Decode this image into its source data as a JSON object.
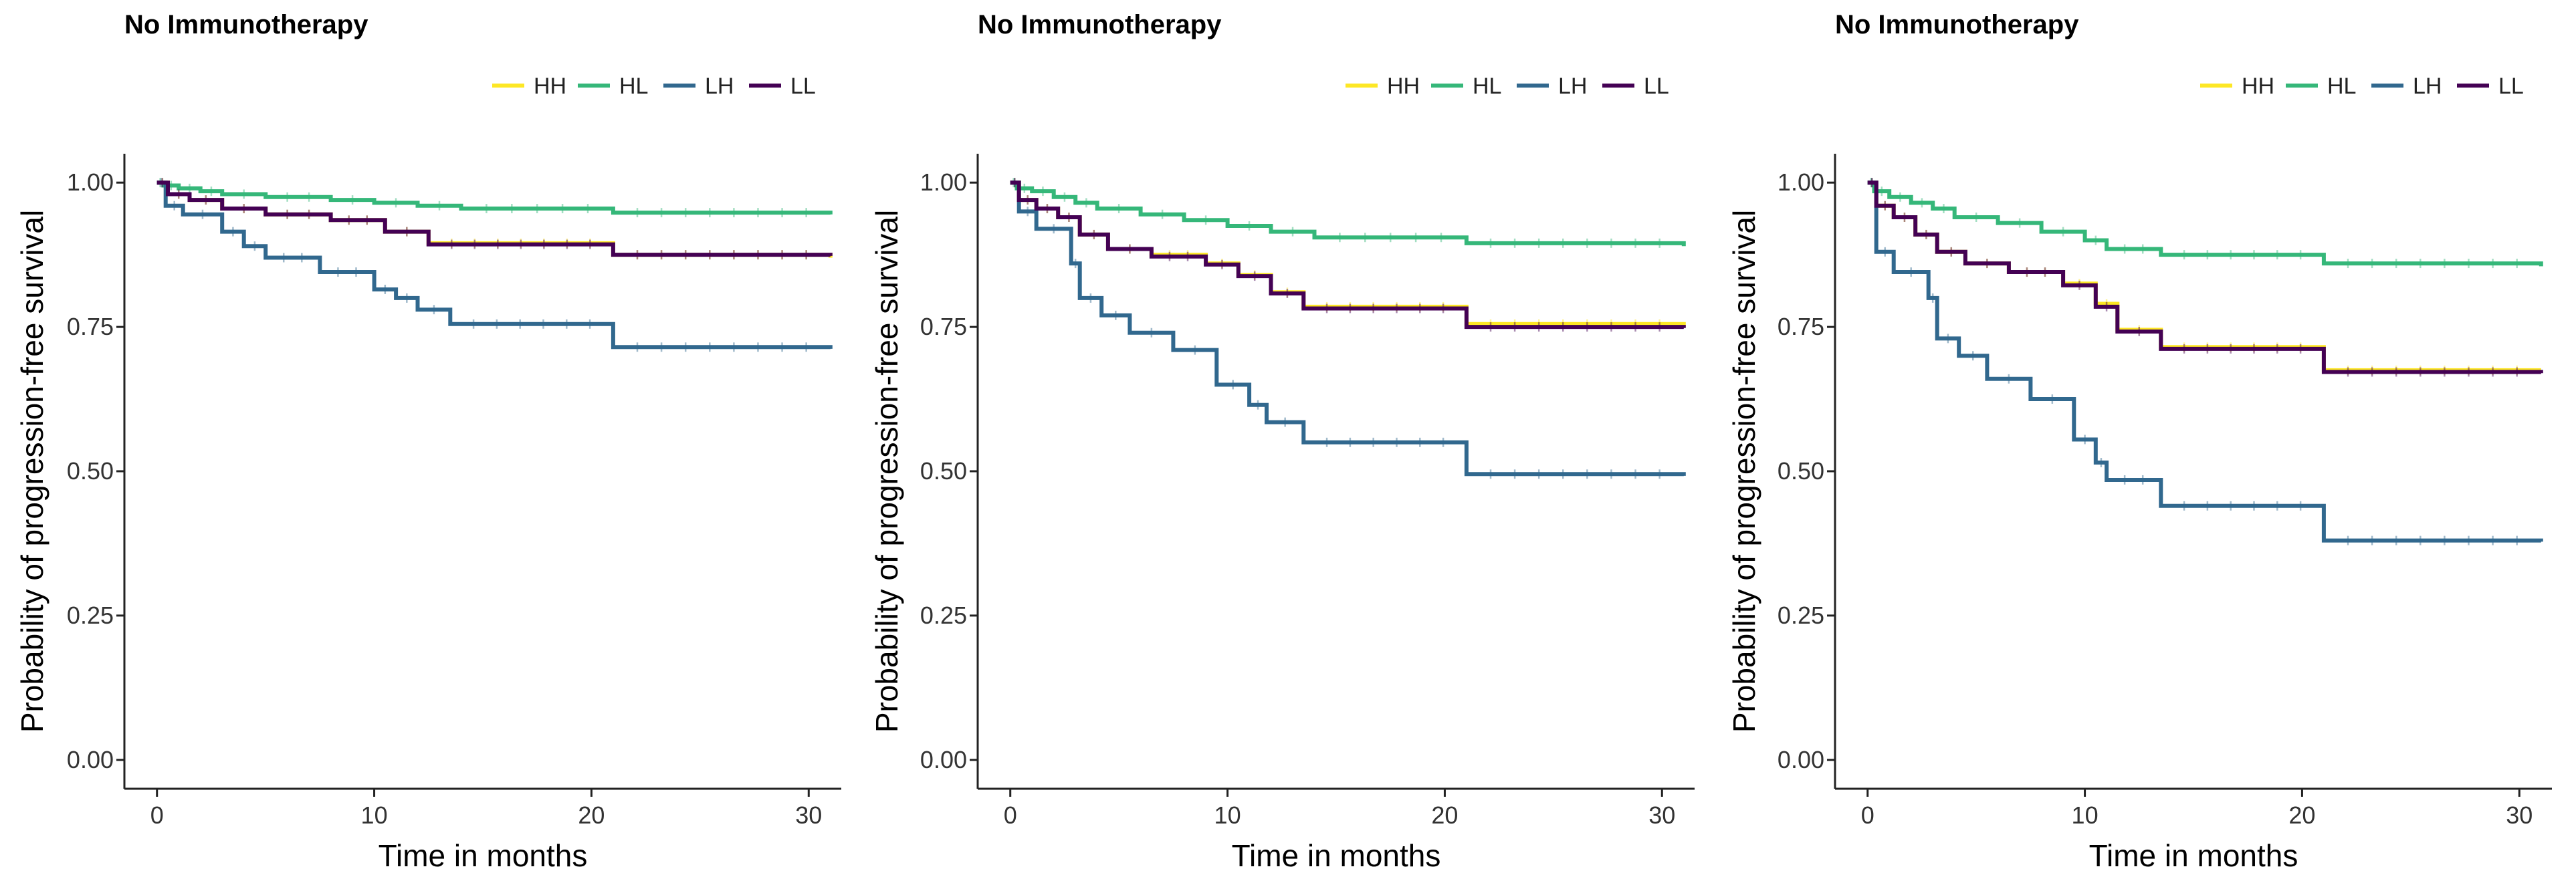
{
  "colors": {
    "HH": "#FDE725",
    "HL": "#35B779",
    "LH": "#31688E",
    "LL": "#440154"
  },
  "chart_data": [
    {
      "type": "line",
      "title": "No Immunotherapy",
      "xlabel": "Time in months",
      "ylabel": "Probability of progression-free survival",
      "xlim": [
        -1.5,
        31.5
      ],
      "ylim": [
        -0.05,
        1.05
      ],
      "xticks": [
        0,
        10,
        20,
        30
      ],
      "yticks": [
        0.0,
        0.25,
        0.5,
        0.75,
        1.0
      ],
      "ytick_labels": [
        "0.00",
        "0.25",
        "0.50",
        "0.75",
        "1.00"
      ],
      "xtick_labels": [
        "0",
        "10",
        "20",
        "30"
      ],
      "grid": false,
      "legend": "top-right",
      "series": [
        {
          "name": "HH",
          "x": [
            0,
            0.5,
            1.5,
            3,
            5,
            8,
            10.5,
            12.5,
            21,
            31
          ],
          "y": [
            1.0,
            0.98,
            0.97,
            0.955,
            0.945,
            0.935,
            0.915,
            0.895,
            0.875,
            0.87
          ]
        },
        {
          "name": "HL",
          "x": [
            0,
            0.3,
            1,
            2,
            3,
            5,
            8,
            10,
            12,
            14,
            21,
            31
          ],
          "y": [
            1.0,
            0.995,
            0.99,
            0.985,
            0.98,
            0.975,
            0.97,
            0.965,
            0.96,
            0.955,
            0.948,
            0.945
          ]
        },
        {
          "name": "LH",
          "x": [
            0,
            0.4,
            1.2,
            3,
            4,
            5,
            7.5,
            10,
            11,
            12,
            13.5,
            21,
            31
          ],
          "y": [
            1.0,
            0.96,
            0.945,
            0.915,
            0.89,
            0.87,
            0.845,
            0.815,
            0.8,
            0.78,
            0.755,
            0.715,
            0.712
          ]
        },
        {
          "name": "LL",
          "x": [
            0,
            0.5,
            1.5,
            3,
            5,
            8,
            10.5,
            12.5,
            21,
            31
          ],
          "y": [
            1.0,
            0.98,
            0.97,
            0.955,
            0.945,
            0.935,
            0.915,
            0.893,
            0.875,
            0.873
          ]
        }
      ]
    },
    {
      "type": "line",
      "title": "No Immunotherapy",
      "xlabel": "Time in months",
      "ylabel": "Probability of progression-free survival",
      "xlim": [
        -1.5,
        31.5
      ],
      "ylim": [
        -0.05,
        1.05
      ],
      "xticks": [
        0,
        10,
        20,
        30
      ],
      "yticks": [
        0.0,
        0.25,
        0.5,
        0.75,
        1.0
      ],
      "ytick_labels": [
        "0.00",
        "0.25",
        "0.50",
        "0.75",
        "1.00"
      ],
      "xtick_labels": [
        "0",
        "10",
        "20",
        "30"
      ],
      "grid": false,
      "legend": "top-right",
      "series": [
        {
          "name": "HH",
          "x": [
            0,
            0.4,
            1.2,
            2.2,
            3.2,
            4.5,
            6.5,
            9,
            10.5,
            12,
            13.5,
            21,
            31
          ],
          "y": [
            1.0,
            0.97,
            0.955,
            0.94,
            0.91,
            0.885,
            0.875,
            0.86,
            0.84,
            0.81,
            0.785,
            0.755,
            0.75
          ]
        },
        {
          "name": "HL",
          "x": [
            0,
            0.3,
            1,
            2,
            3,
            4,
            6,
            8,
            10,
            12,
            14,
            21,
            31
          ],
          "y": [
            1.0,
            0.99,
            0.985,
            0.975,
            0.965,
            0.955,
            0.945,
            0.935,
            0.925,
            0.915,
            0.905,
            0.895,
            0.89
          ]
        },
        {
          "name": "LH",
          "x": [
            0,
            0.4,
            1.2,
            2.8,
            3.2,
            4.2,
            5.5,
            7.5,
            9.5,
            11,
            11.8,
            13.5,
            21,
            31
          ],
          "y": [
            1.0,
            0.95,
            0.92,
            0.86,
            0.8,
            0.77,
            0.74,
            0.71,
            0.65,
            0.615,
            0.585,
            0.55,
            0.495,
            0.492
          ]
        },
        {
          "name": "LL",
          "x": [
            0,
            0.4,
            1.2,
            2.2,
            3.2,
            4.5,
            6.5,
            9,
            10.5,
            12,
            13.5,
            21,
            31
          ],
          "y": [
            1.0,
            0.97,
            0.955,
            0.94,
            0.91,
            0.885,
            0.872,
            0.858,
            0.838,
            0.808,
            0.782,
            0.75,
            0.748
          ]
        }
      ]
    },
    {
      "type": "line",
      "title": "No Immunotherapy",
      "xlabel": "Time in months",
      "ylabel": "Probability of progression-free survival",
      "xlim": [
        -1.5,
        31.5
      ],
      "ylim": [
        -0.05,
        1.05
      ],
      "xticks": [
        0,
        10,
        20,
        30
      ],
      "yticks": [
        0.0,
        0.25,
        0.5,
        0.75,
        1.0
      ],
      "ytick_labels": [
        "0.00",
        "0.25",
        "0.50",
        "0.75",
        "1.00"
      ],
      "xtick_labels": [
        "0",
        "10",
        "20",
        "30"
      ],
      "grid": false,
      "legend": "top-right",
      "series": [
        {
          "name": "HH",
          "x": [
            0,
            0.4,
            1.2,
            2.2,
            3.2,
            4.5,
            6.5,
            9,
            10.5,
            11.5,
            13.5,
            21,
            31
          ],
          "y": [
            1.0,
            0.96,
            0.94,
            0.91,
            0.88,
            0.86,
            0.845,
            0.825,
            0.79,
            0.745,
            0.715,
            0.675,
            0.675
          ]
        },
        {
          "name": "HL",
          "x": [
            0,
            0.3,
            1,
            2,
            3,
            4,
            6,
            8,
            10,
            11,
            13.5,
            21,
            31
          ],
          "y": [
            1.0,
            0.985,
            0.975,
            0.965,
            0.955,
            0.94,
            0.93,
            0.915,
            0.9,
            0.885,
            0.875,
            0.86,
            0.855
          ]
        },
        {
          "name": "LH",
          "x": [
            0,
            0.4,
            1.2,
            2.8,
            3.2,
            4.2,
            5.5,
            7.5,
            9.5,
            10.5,
            11,
            13.5,
            21,
            31
          ],
          "y": [
            1.0,
            0.88,
            0.845,
            0.8,
            0.73,
            0.7,
            0.66,
            0.625,
            0.555,
            0.515,
            0.485,
            0.44,
            0.38,
            0.378
          ]
        },
        {
          "name": "LL",
          "x": [
            0,
            0.4,
            1.2,
            2.2,
            3.2,
            4.5,
            6.5,
            9,
            10.5,
            11.5,
            13.5,
            21,
            31
          ],
          "y": [
            1.0,
            0.96,
            0.94,
            0.91,
            0.88,
            0.86,
            0.845,
            0.822,
            0.785,
            0.742,
            0.712,
            0.672,
            0.67
          ]
        }
      ]
    }
  ]
}
